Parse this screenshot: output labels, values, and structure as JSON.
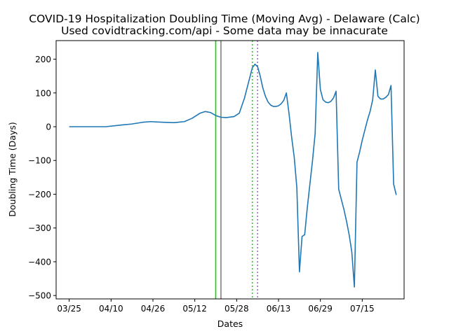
{
  "chart_data": {
    "type": "line",
    "title": "COVID-19 Hospitalization Doubling Time (Moving Avg) - Delaware (Calc)",
    "subtitle": "Used covidtracking.com/api - Some data may be innacurate",
    "xlabel": "Dates",
    "ylabel": "Doubling Time (Days)",
    "x_start": "03/25",
    "xlim": [
      -5,
      128
    ],
    "ylim": [
      -510,
      255
    ],
    "x_ticks": [
      {
        "day": 0,
        "label": "03/25"
      },
      {
        "day": 16,
        "label": "04/10"
      },
      {
        "day": 32,
        "label": "04/26"
      },
      {
        "day": 48,
        "label": "05/12"
      },
      {
        "day": 64,
        "label": "05/28"
      },
      {
        "day": 80,
        "label": "06/13"
      },
      {
        "day": 96,
        "label": "06/29"
      },
      {
        "day": 112,
        "label": "07/15"
      }
    ],
    "y_ticks": [
      200,
      100,
      0,
      -100,
      -200,
      -300,
      -400,
      -500
    ],
    "y_tick_labels": [
      "200",
      "100",
      "0",
      "−100",
      "−200",
      "−300",
      "−400",
      "−500"
    ],
    "vlines": [
      {
        "day": 56,
        "color": "#00dd00",
        "style": "solid"
      },
      {
        "day": 58,
        "color": "#808080",
        "style": "solid"
      },
      {
        "day": 70,
        "color": "#00dd00",
        "style": "dotted"
      },
      {
        "day": 72,
        "color": "#9467bd",
        "style": "dotted"
      }
    ],
    "series": [
      {
        "color": "#1f77b4",
        "points": [
          [
            0,
            0
          ],
          [
            10,
            0
          ],
          [
            14,
            0
          ],
          [
            20,
            5
          ],
          [
            24,
            8
          ],
          [
            28,
            13
          ],
          [
            31,
            15
          ],
          [
            36,
            13
          ],
          [
            40,
            12
          ],
          [
            44,
            15
          ],
          [
            47,
            25
          ],
          [
            50,
            40
          ],
          [
            52,
            45
          ],
          [
            54,
            42
          ],
          [
            56,
            33
          ],
          [
            58,
            28
          ],
          [
            60,
            27
          ],
          [
            63,
            30
          ],
          [
            65,
            40
          ],
          [
            67,
            85
          ],
          [
            69,
            145
          ],
          [
            70,
            175
          ],
          [
            71,
            185
          ],
          [
            72,
            178
          ],
          [
            73,
            150
          ],
          [
            74,
            115
          ],
          [
            75,
            90
          ],
          [
            76,
            73
          ],
          [
            77,
            64
          ],
          [
            78,
            60
          ],
          [
            79,
            60
          ],
          [
            80,
            62
          ],
          [
            81,
            68
          ],
          [
            82,
            78
          ],
          [
            83,
            100
          ],
          [
            84,
            40
          ],
          [
            85,
            -30
          ],
          [
            86,
            -90
          ],
          [
            87,
            -180
          ],
          [
            88,
            -430
          ],
          [
            89,
            -325
          ],
          [
            90,
            -320
          ],
          [
            91,
            -240
          ],
          [
            92,
            -170
          ],
          [
            93,
            -100
          ],
          [
            94,
            -20
          ],
          [
            95,
            220
          ],
          [
            96,
            110
          ],
          [
            97,
            80
          ],
          [
            98,
            73
          ],
          [
            99,
            71
          ],
          [
            100,
            75
          ],
          [
            101,
            85
          ],
          [
            102,
            105
          ],
          [
            103,
            -185
          ],
          [
            104,
            -215
          ],
          [
            105,
            -245
          ],
          [
            106,
            -280
          ],
          [
            107,
            -320
          ],
          [
            108,
            -370
          ],
          [
            109,
            -475
          ],
          [
            110,
            -105
          ],
          [
            111,
            -75
          ],
          [
            112,
            -40
          ],
          [
            113,
            -10
          ],
          [
            114,
            20
          ],
          [
            115,
            45
          ],
          [
            116,
            80
          ],
          [
            117,
            168
          ],
          [
            118,
            90
          ],
          [
            119,
            82
          ],
          [
            120,
            82
          ],
          [
            121,
            87
          ],
          [
            122,
            95
          ],
          [
            123,
            122
          ],
          [
            124,
            -170
          ],
          [
            125,
            -202
          ]
        ]
      }
    ]
  }
}
